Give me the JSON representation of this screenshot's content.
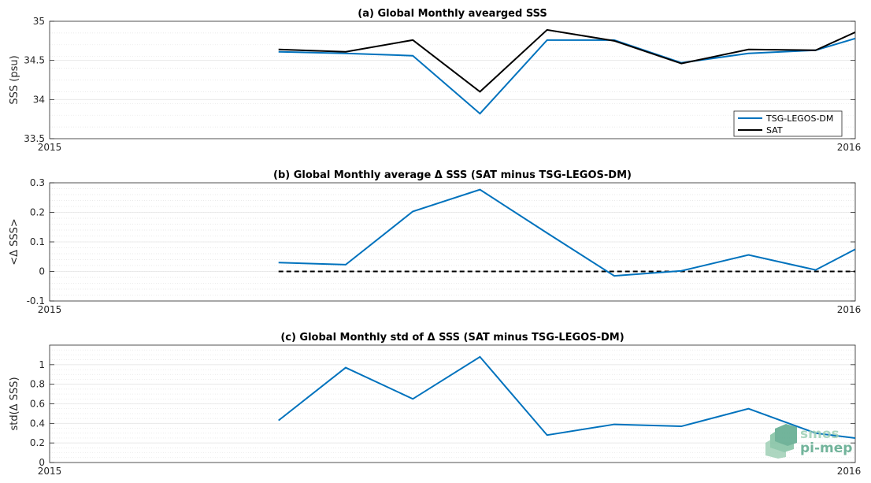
{
  "chart_data": [
    {
      "type": "line",
      "title": "(a) Global Monthly avearged SSS",
      "ylabel": "SSS (psu)",
      "xlim": [
        0,
        12
      ],
      "ylim": [
        33.5,
        35
      ],
      "yticks": [
        33.5,
        34,
        34.5,
        35
      ],
      "ytick_labels": [
        "33.5",
        "34",
        "34.5",
        "35"
      ],
      "xtick_labels": [
        "2015",
        "2016"
      ],
      "grid": "minor-dotted",
      "legend": "bottom-right",
      "series": [
        {
          "name": "TSG-LEGOS-DM",
          "color": "#0072bd",
          "x": [
            3.41,
            4.41,
            5.41,
            6.41,
            7.41,
            8.41,
            9.41,
            10.41,
            11.41,
            12.0
          ],
          "y": [
            34.61,
            34.59,
            34.56,
            33.82,
            34.76,
            34.76,
            34.47,
            34.59,
            34.63,
            34.78
          ]
        },
        {
          "name": "SAT",
          "color": "#000000",
          "x": [
            3.41,
            4.41,
            5.41,
            6.41,
            7.41,
            8.41,
            9.41,
            10.41,
            11.41,
            12.0
          ],
          "y": [
            34.64,
            34.61,
            34.76,
            34.1,
            34.89,
            34.75,
            34.46,
            34.64,
            34.63,
            34.86
          ]
        }
      ]
    },
    {
      "type": "line",
      "title": "(b) Global Monthly average Δ SSS (SAT minus TSG-LEGOS-DM)",
      "ylabel": "<Δ SSS>",
      "xlim": [
        0,
        12
      ],
      "ylim": [
        -0.1,
        0.3
      ],
      "yticks": [
        -0.1,
        0,
        0.1,
        0.2,
        0.3
      ],
      "ytick_labels": [
        "-0.1",
        "0",
        "0.1",
        "0.2",
        "0.3"
      ],
      "xtick_labels": [
        "2015",
        "2016"
      ],
      "grid": "minor-dotted",
      "zero_line": {
        "x": [
          3.41,
          12.0
        ],
        "y": 0
      },
      "series": [
        {
          "color": "#0072bd",
          "x": [
            3.41,
            4.41,
            5.41,
            6.41,
            7.41,
            8.41,
            9.41,
            10.41,
            11.41,
            12.0
          ],
          "y": [
            0.03,
            0.023,
            0.203,
            0.277,
            0.13,
            -0.015,
            0.002,
            0.056,
            0.005,
            0.075
          ]
        }
      ]
    },
    {
      "type": "line",
      "title": "(c) Global Monthly std of Δ SSS (SAT minus TSG-LEGOS-DM)",
      "ylabel": "std(Δ SSS)",
      "xlim": [
        0,
        12
      ],
      "ylim": [
        0,
        1.2
      ],
      "yticks": [
        0,
        0.2,
        0.4,
        0.6,
        0.8,
        1
      ],
      "ytick_labels": [
        "0",
        "0.2",
        "0.4",
        "0.6",
        "0.8",
        "1"
      ],
      "xtick_labels": [
        "2015",
        "2016"
      ],
      "grid": "minor-dotted",
      "series": [
        {
          "color": "#0072bd",
          "x": [
            3.41,
            4.41,
            5.41,
            6.41,
            7.41,
            8.41,
            9.41,
            10.41,
            11.41,
            12.0
          ],
          "y": [
            0.43,
            0.97,
            0.65,
            1.08,
            0.28,
            0.39,
            0.37,
            0.55,
            0.3,
            0.25
          ]
        }
      ]
    }
  ],
  "logo": {
    "line1": "smos",
    "line2": "pi-mep",
    "color": "#5aa88a"
  }
}
